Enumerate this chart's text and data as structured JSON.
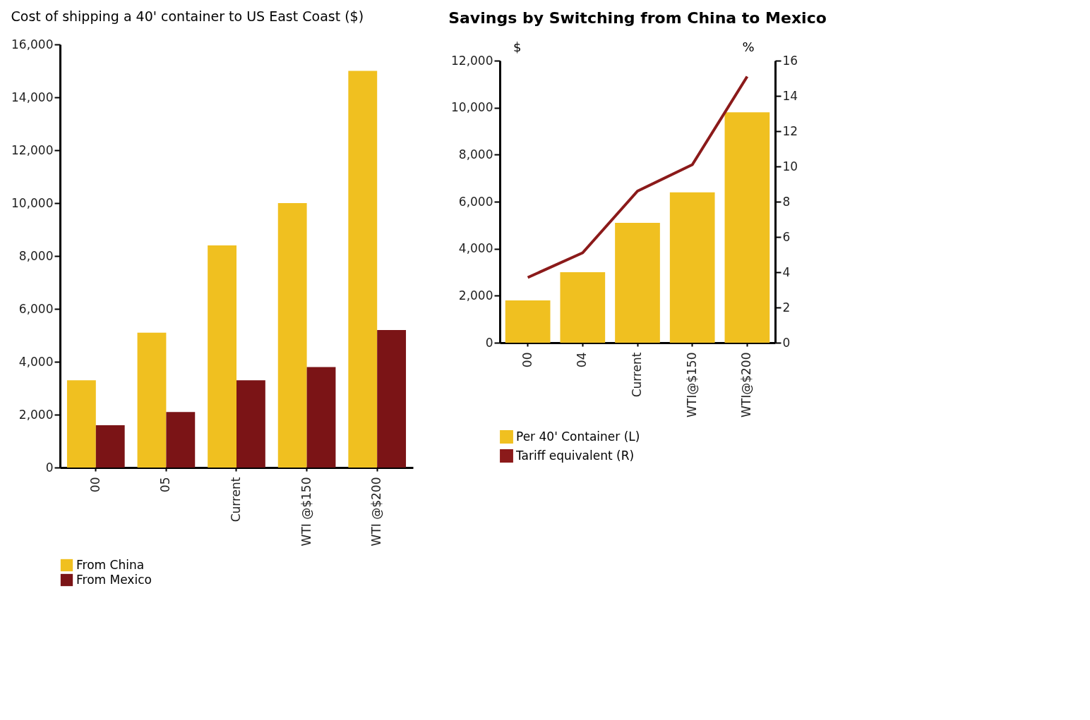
{
  "chart_data": [
    {
      "type": "bar",
      "title": "Cost of shipping a 40' container to US East Coast ($)",
      "categories": [
        "00",
        "05",
        "Current",
        "WTI @$150",
        "WTI @$200"
      ],
      "ylim": [
        0,
        16000
      ],
      "yticks": [
        0,
        {
          "value": 2000,
          "label": "2,000"
        },
        {
          "value": 4000,
          "label": "4,000"
        },
        {
          "value": 6000,
          "label": "6,000"
        },
        {
          "value": 8000,
          "label": "8,000"
        },
        {
          "value": 10000,
          "label": "10,000"
        },
        {
          "value": 12000,
          "label": "12,000"
        },
        {
          "value": 14000,
          "label": "14,000"
        },
        {
          "value": 16000,
          "label": "16,000"
        }
      ],
      "legend": "bottom",
      "series": [
        {
          "name": "From China",
          "color": "#f0c020",
          "values": [
            3300,
            5100,
            8400,
            10000,
            15000
          ]
        },
        {
          "name": "From Mexico",
          "color": "#7b1416",
          "values": [
            1600,
            2100,
            3300,
            3800,
            5200
          ]
        }
      ]
    },
    {
      "type": "bar",
      "title": "Savings by Switching from China to Mexico",
      "ylabel": "$",
      "y2label": "%",
      "categories": [
        "00",
        "04",
        "Current",
        "WTI@$150",
        "WTI@$200"
      ],
      "ylim": [
        0,
        12000
      ],
      "yticks": [
        0,
        {
          "value": 2000,
          "label": "2,000"
        },
        {
          "value": 4000,
          "label": "4,000"
        },
        {
          "value": 6000,
          "label": "6,000"
        },
        {
          "value": 8000,
          "label": "8,000"
        },
        {
          "value": 10000,
          "label": "10,000"
        },
        {
          "value": 12000,
          "label": "12,000"
        }
      ],
      "y2lim": [
        0,
        16
      ],
      "y2ticks": [
        0,
        2,
        4,
        6,
        8,
        10,
        12,
        14,
        16
      ],
      "legend": "bottom",
      "series": [
        {
          "name": "Per 40' Container (L)",
          "color": "#f0c020",
          "values": [
            1800,
            3000,
            5100,
            6400,
            9800
          ]
        },
        {
          "name": "Tariff equivalent (R)",
          "type": "line",
          "axis": "y2",
          "color": "#8b1a1a",
          "values": [
            3.7,
            5.1,
            8.6,
            10.1,
            15.1
          ]
        }
      ]
    }
  ]
}
